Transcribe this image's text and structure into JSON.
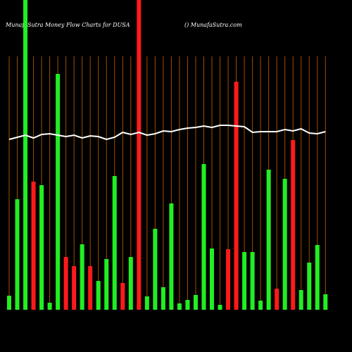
{
  "chart_data": {
    "type": "bar",
    "title": "MunafaSutra  Money Flow  Charts for DUSA",
    "source": "() MunafaSutra.com",
    "categories": [
      null,
      null,
      null,
      null,
      null,
      null,
      null,
      null,
      null,
      null,
      null,
      null,
      null,
      null,
      null,
      null,
      null,
      null,
      null,
      null,
      null,
      null,
      null,
      null,
      null,
      null,
      null,
      null,
      null,
      null,
      null,
      null,
      null,
      null,
      null,
      null,
      null,
      null,
      null,
      null
    ],
    "series": [
      {
        "name": "flow",
        "values": [
          20,
          157,
          440,
          182,
          177,
          10,
          335,
          75,
          62,
          93,
          62,
          41,
          72,
          190,
          38,
          75,
          440,
          19,
          115,
          32,
          151,
          9,
          14,
          21,
          207,
          87,
          7,
          86,
          324,
          82,
          82,
          13,
          199,
          30,
          186,
          241,
          28,
          67,
          92,
          22
        ],
        "colors": [
          "#22ee22",
          "#22ee22",
          "#22ee22",
          "#ff1a1a",
          "#22ee22",
          "#22ee22",
          "#22ee22",
          "#ff1a1a",
          "#ff1a1a",
          "#22ee22",
          "#ff1a1a",
          "#22ee22",
          "#22ee22",
          "#22ee22",
          "#ff1a1a",
          "#22ee22",
          "#ff1a1a",
          "#22ee22",
          "#22ee22",
          "#22ee22",
          "#22ee22",
          "#22ee22",
          "#22ee22",
          "#22ee22",
          "#22ee22",
          "#22ee22",
          "#22ee22",
          "#ff1a1a",
          "#ff1a1a",
          "#22ee22",
          "#22ee22",
          "#22ee22",
          "#22ee22",
          "#ff1a1a",
          "#22ee22",
          "#ff1a1a",
          "#22ee22",
          "#22ee22",
          "#22ee22",
          "#22ee22"
        ]
      },
      {
        "name": "line",
        "color": "#ffffff",
        "values": [
          242,
          245,
          248,
          244,
          249,
          250,
          248,
          246,
          248,
          244,
          247,
          246,
          242,
          245,
          252,
          249,
          252,
          248,
          250,
          254,
          253,
          256,
          258,
          259,
          261,
          259,
          262,
          262,
          261,
          260,
          252,
          253,
          253,
          253,
          256,
          254,
          257,
          251,
          250,
          253
        ]
      }
    ],
    "ylim": [
      0,
      440
    ],
    "vline_color": "#a04f00"
  }
}
